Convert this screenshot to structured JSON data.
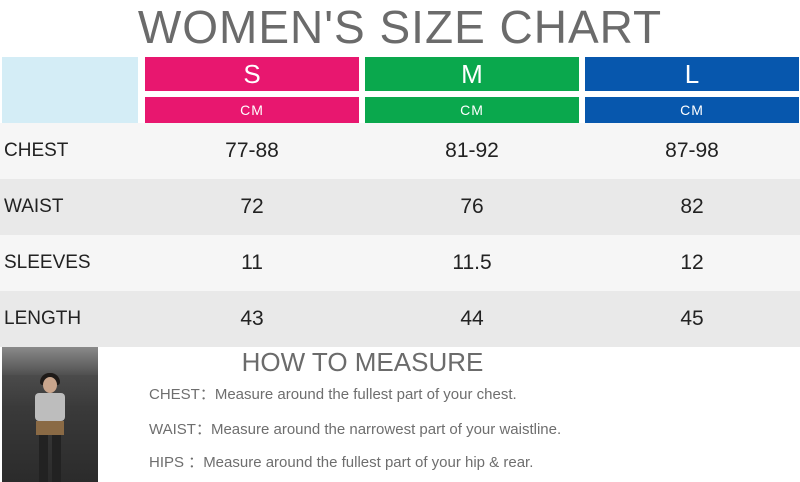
{
  "title": "WOMEN'S SIZE CHART",
  "sizes": [
    {
      "label": "S",
      "unit": "CM",
      "color": "#e8176f"
    },
    {
      "label": "M",
      "unit": "CM",
      "color": "#0aa84d"
    },
    {
      "label": "L",
      "unit": "CM",
      "color": "#0757ad"
    }
  ],
  "rows": [
    {
      "label": "CHEST",
      "values": [
        "77-88",
        "81-92",
        "87-98"
      ],
      "bg": "#f6f6f6"
    },
    {
      "label": "WAIST",
      "values": [
        "72",
        "76",
        "82"
      ],
      "bg": "#e9e9e9"
    },
    {
      "label": "SLEEVES",
      "values": [
        "11",
        "11.5",
        "12"
      ],
      "bg": "#f6f6f6"
    },
    {
      "label": "LENGTH",
      "values": [
        "43",
        "44",
        "45"
      ],
      "bg": "#e9e9e9"
    }
  ],
  "measure": {
    "title": "HOW TO MEASURE",
    "items": [
      {
        "key": "CHEST：",
        "text": "Measure around the fullest part of your chest."
      },
      {
        "key": "WAIST：",
        "text": "Measure around the narrowest part of your waistline."
      },
      {
        "key": "HIPS ：",
        "text": "Measure around the fullest part of your hip & rear."
      }
    ]
  },
  "colors": {
    "corner": "#d4edf6",
    "title_text": "#6b6b6b"
  }
}
